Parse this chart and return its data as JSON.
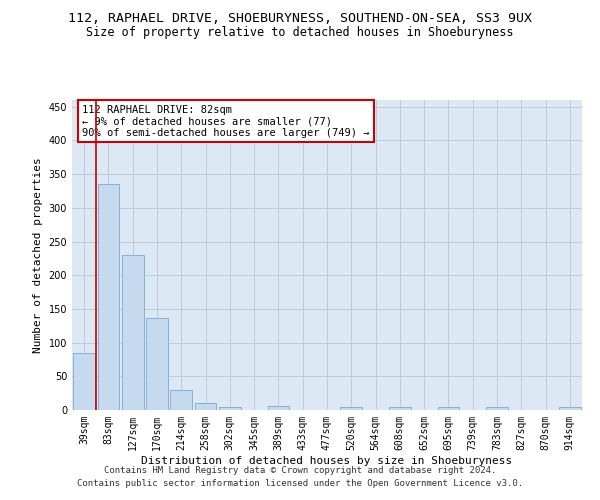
{
  "title": "112, RAPHAEL DRIVE, SHOEBURYNESS, SOUTHEND-ON-SEA, SS3 9UX",
  "subtitle": "Size of property relative to detached houses in Shoeburyness",
  "xlabel": "Distribution of detached houses by size in Shoeburyness",
  "ylabel": "Number of detached properties",
  "footer_line1": "Contains HM Land Registry data © Crown copyright and database right 2024.",
  "footer_line2": "Contains public sector information licensed under the Open Government Licence v3.0.",
  "categories": [
    "39sqm",
    "83sqm",
    "127sqm",
    "170sqm",
    "214sqm",
    "258sqm",
    "302sqm",
    "345sqm",
    "389sqm",
    "433sqm",
    "477sqm",
    "520sqm",
    "564sqm",
    "608sqm",
    "652sqm",
    "695sqm",
    "739sqm",
    "783sqm",
    "827sqm",
    "870sqm",
    "914sqm"
  ],
  "bar_heights": [
    85,
    335,
    230,
    137,
    30,
    10,
    5,
    0,
    6,
    0,
    0,
    4,
    0,
    4,
    0,
    5,
    0,
    5,
    0,
    0,
    5
  ],
  "bar_color": "#c5d9ef",
  "bar_edge_color": "#7aa8d2",
  "annotation_box_text": "112 RAPHAEL DRIVE: 82sqm\n← 9% of detached houses are smaller (77)\n90% of semi-detached houses are larger (749) →",
  "annotation_box_color": "#ffffff",
  "annotation_box_edge_color": "#cc0000",
  "vline_x_index": 1,
  "vline_color": "#cc0000",
  "ylim": [
    0,
    460
  ],
  "yticks": [
    0,
    50,
    100,
    150,
    200,
    250,
    300,
    350,
    400,
    450
  ],
  "axes_bg_color": "#dde8f5",
  "background_color": "#ffffff",
  "grid_color": "#b8c8d8",
  "title_fontsize": 9.5,
  "subtitle_fontsize": 8.5,
  "xlabel_fontsize": 8,
  "ylabel_fontsize": 8,
  "tick_fontsize": 7,
  "annot_fontsize": 7.5,
  "footer_fontsize": 6.5
}
